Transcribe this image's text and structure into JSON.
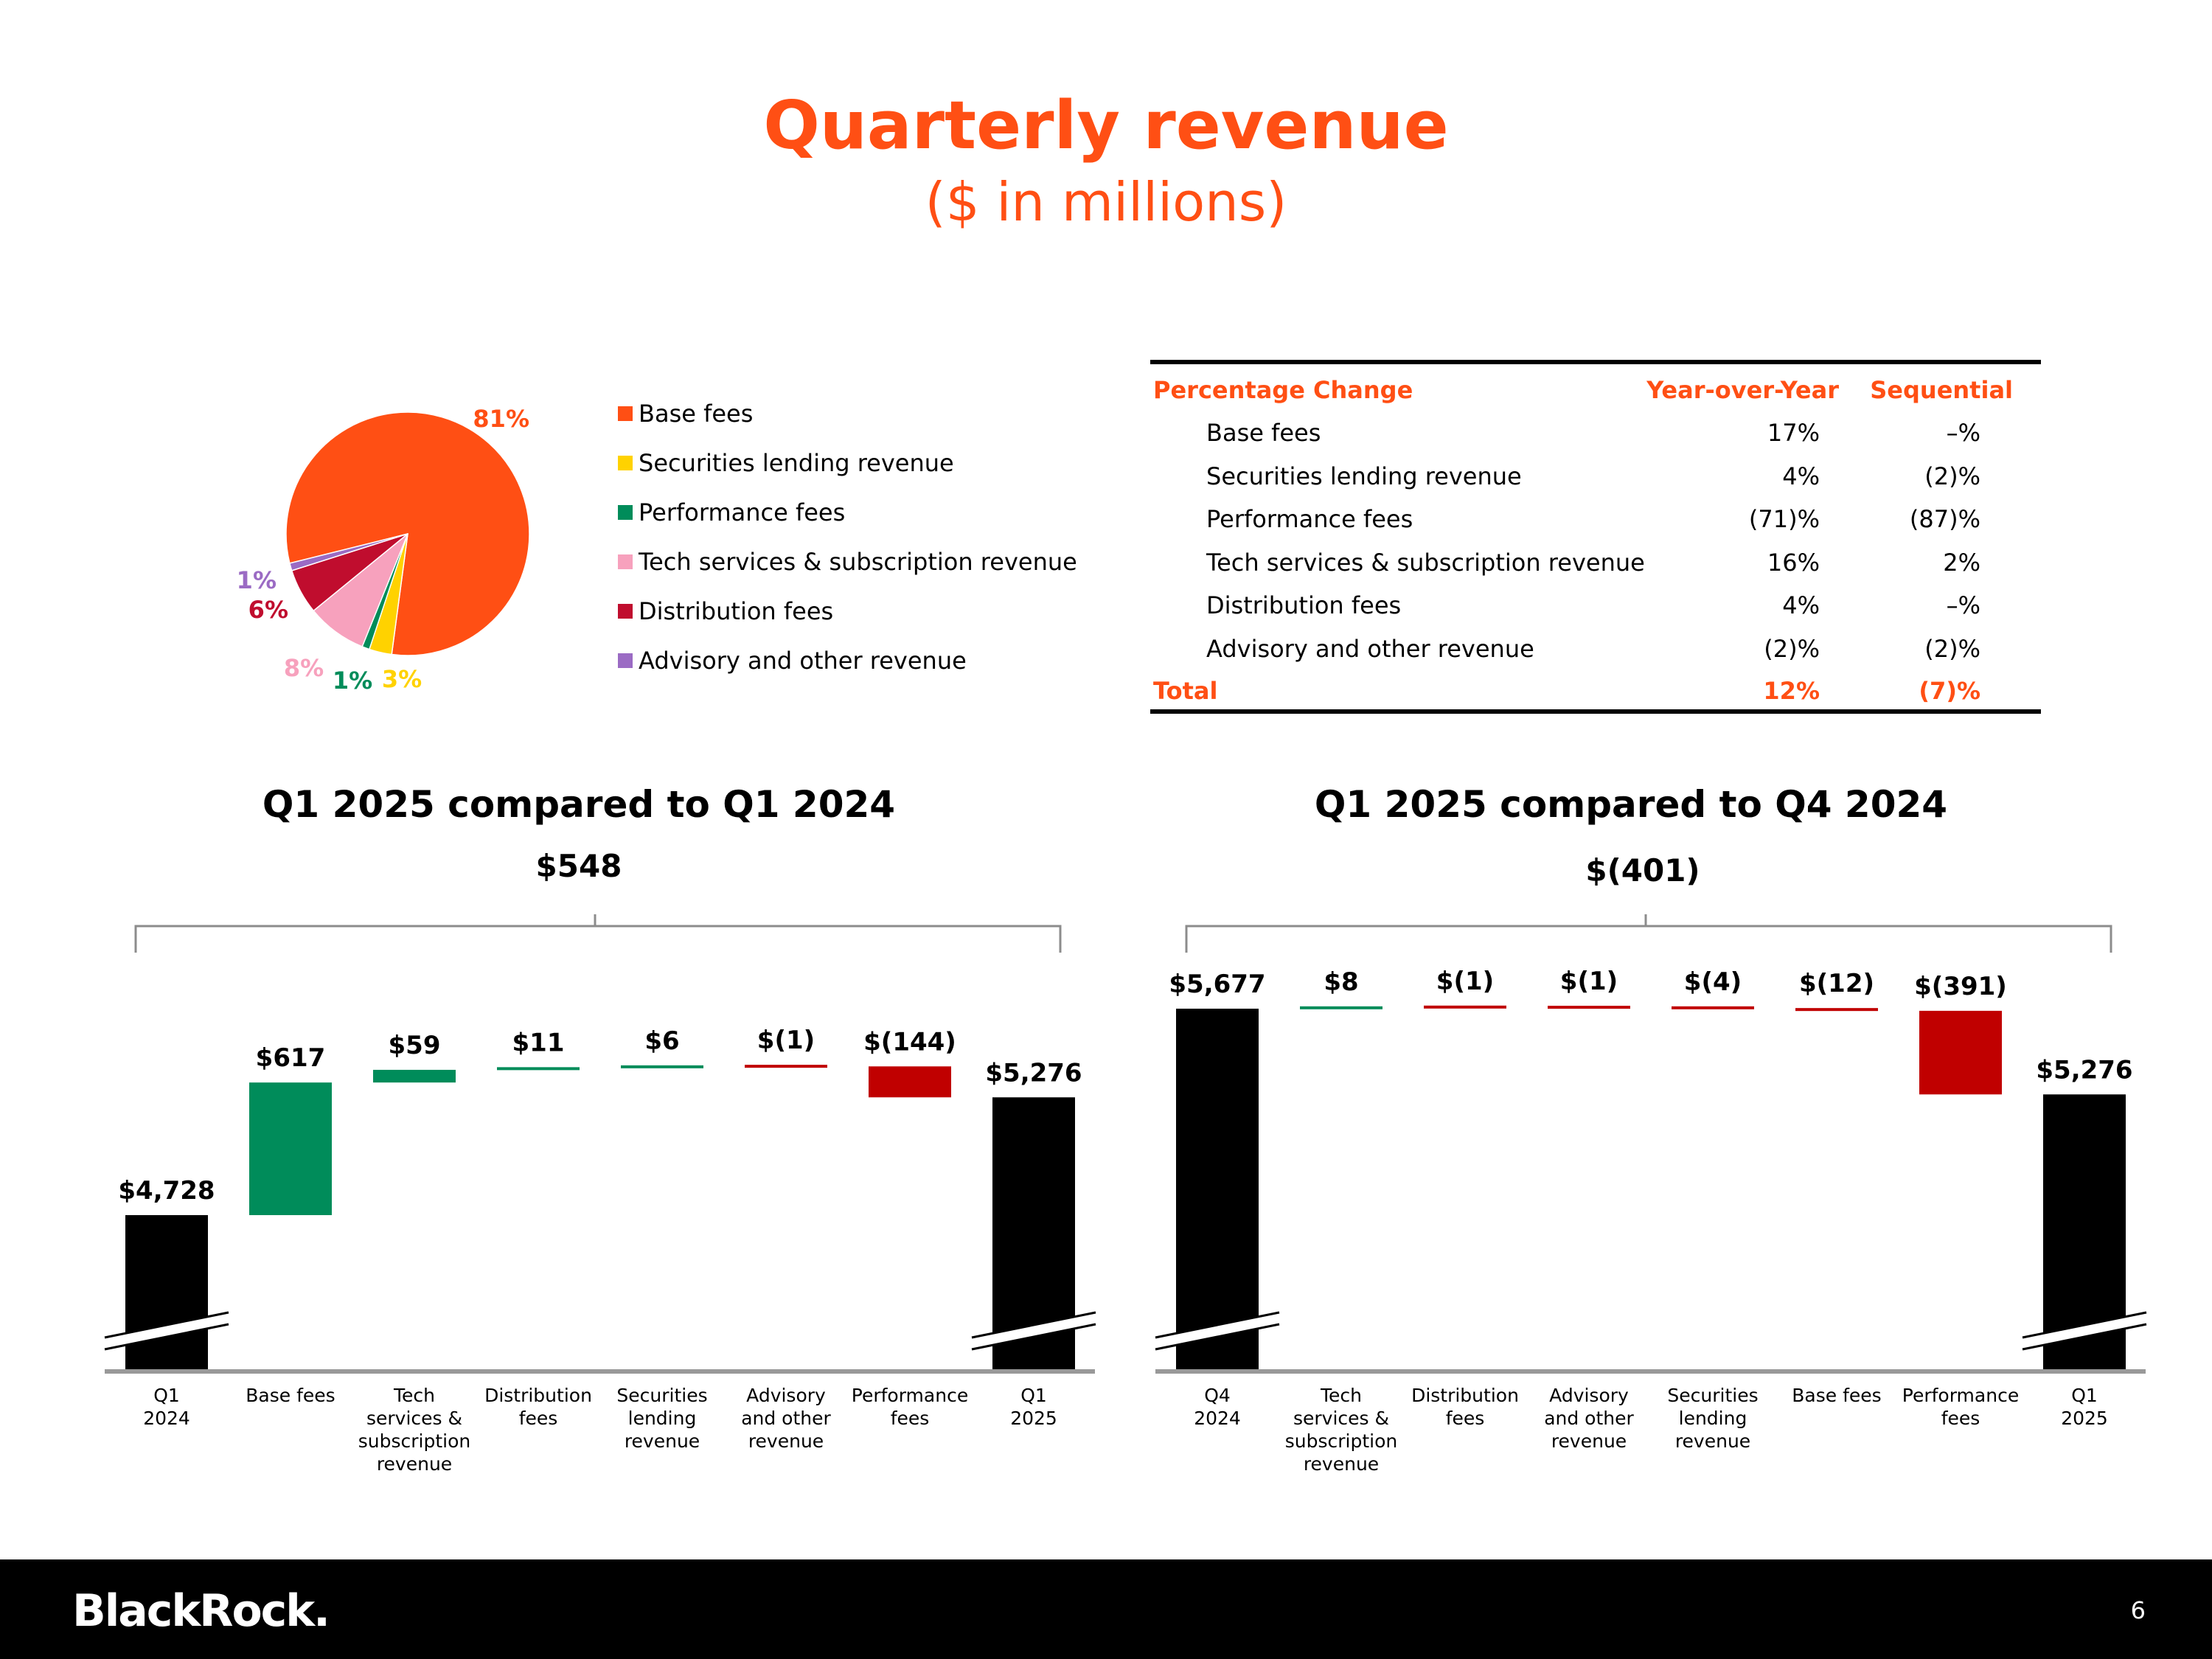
{
  "title": "Quarterly revenue",
  "subtitle": "($ in millions)",
  "colors": {
    "accent": "#ff4f14",
    "positive": "#008c5a",
    "negative": "#c00000",
    "bar": "#000000",
    "axis": "#999999"
  },
  "chart_data": [
    {
      "type": "pie",
      "slices": [
        {
          "name": "Base fees",
          "value": 81,
          "label": "81%",
          "color": "#ff4f14"
        },
        {
          "name": "Securities lending revenue",
          "value": 3,
          "label": "3%",
          "color": "#ffd200"
        },
        {
          "name": "Performance fees",
          "value": 1,
          "label": "1%",
          "color": "#008c5a"
        },
        {
          "name": "Tech services & subscription revenue",
          "value": 8,
          "label": "8%",
          "color": "#f7a1bd"
        },
        {
          "name": "Distribution fees",
          "value": 6,
          "label": "6%",
          "color": "#c00d2e"
        },
        {
          "name": "Advisory and other revenue",
          "value": 1,
          "label": "1%",
          "color": "#9b6bc4"
        }
      ],
      "legend_position": "right"
    },
    {
      "type": "table",
      "columns": [
        "Percentage Change",
        "Year-over-Year",
        "Sequential"
      ],
      "rows": [
        [
          "Base fees",
          "17%",
          "–%"
        ],
        [
          "Securities lending revenue",
          "4%",
          "(2)%"
        ],
        [
          "Performance fees",
          "(71)%",
          "(87)%"
        ],
        [
          "Tech services & subscription revenue",
          "16%",
          "2%"
        ],
        [
          "Distribution fees",
          "4%",
          "–%"
        ],
        [
          "Advisory and other revenue",
          "(2)%",
          "(2)%"
        ]
      ],
      "total": [
        "Total",
        "12%",
        "(7)%"
      ]
    },
    {
      "type": "bar",
      "title": "Q1 2025 compared to Q1 2024",
      "total_change": "$548",
      "axis_broken": true,
      "steps": [
        {
          "category": "Q1\n2024",
          "kind": "total",
          "value": 4728,
          "label": "$4,728"
        },
        {
          "category": "Base fees",
          "kind": "delta",
          "value": 617,
          "label": "$617"
        },
        {
          "category": "Tech\nservices &\nsubscription\nrevenue",
          "kind": "delta",
          "value": 59,
          "label": "$59"
        },
        {
          "category": "Distribution\nfees",
          "kind": "delta",
          "value": 11,
          "label": "$11"
        },
        {
          "category": "Securities\nlending\nrevenue",
          "kind": "delta",
          "value": 6,
          "label": "$6"
        },
        {
          "category": "Advisory\nand other\nrevenue",
          "kind": "delta",
          "value": -1,
          "label": "$(1)"
        },
        {
          "category": "Performance\nfees",
          "kind": "delta",
          "value": -144,
          "label": "$(144)"
        },
        {
          "category": "Q1\n2025",
          "kind": "total",
          "value": 5276,
          "label": "$5,276"
        }
      ]
    },
    {
      "type": "bar",
      "title": "Q1 2025 compared to Q4 2024",
      "total_change": "$(401)",
      "axis_broken": true,
      "steps": [
        {
          "category": "Q4\n2024",
          "kind": "total",
          "value": 5677,
          "label": "$5,677"
        },
        {
          "category": "Tech\nservices &\nsubscription\nrevenue",
          "kind": "delta",
          "value": 8,
          "label": "$8"
        },
        {
          "category": "Distribution\nfees",
          "kind": "delta",
          "value": -1,
          "label": "$(1)"
        },
        {
          "category": "Advisory\nand other\nrevenue",
          "kind": "delta",
          "value": -1,
          "label": "$(1)"
        },
        {
          "category": "Securities\nlending\nrevenue",
          "kind": "delta",
          "value": -4,
          "label": "$(4)"
        },
        {
          "category": "Base fees",
          "kind": "delta",
          "value": -12,
          "label": "$(12)"
        },
        {
          "category": "Performance\nfees",
          "kind": "delta",
          "value": -391,
          "label": "$(391)"
        },
        {
          "category": "Q1\n2025",
          "kind": "total",
          "value": 5276,
          "label": "$5,276"
        }
      ]
    }
  ],
  "footer": {
    "logo": "BlackRock.",
    "page_number": "6"
  }
}
